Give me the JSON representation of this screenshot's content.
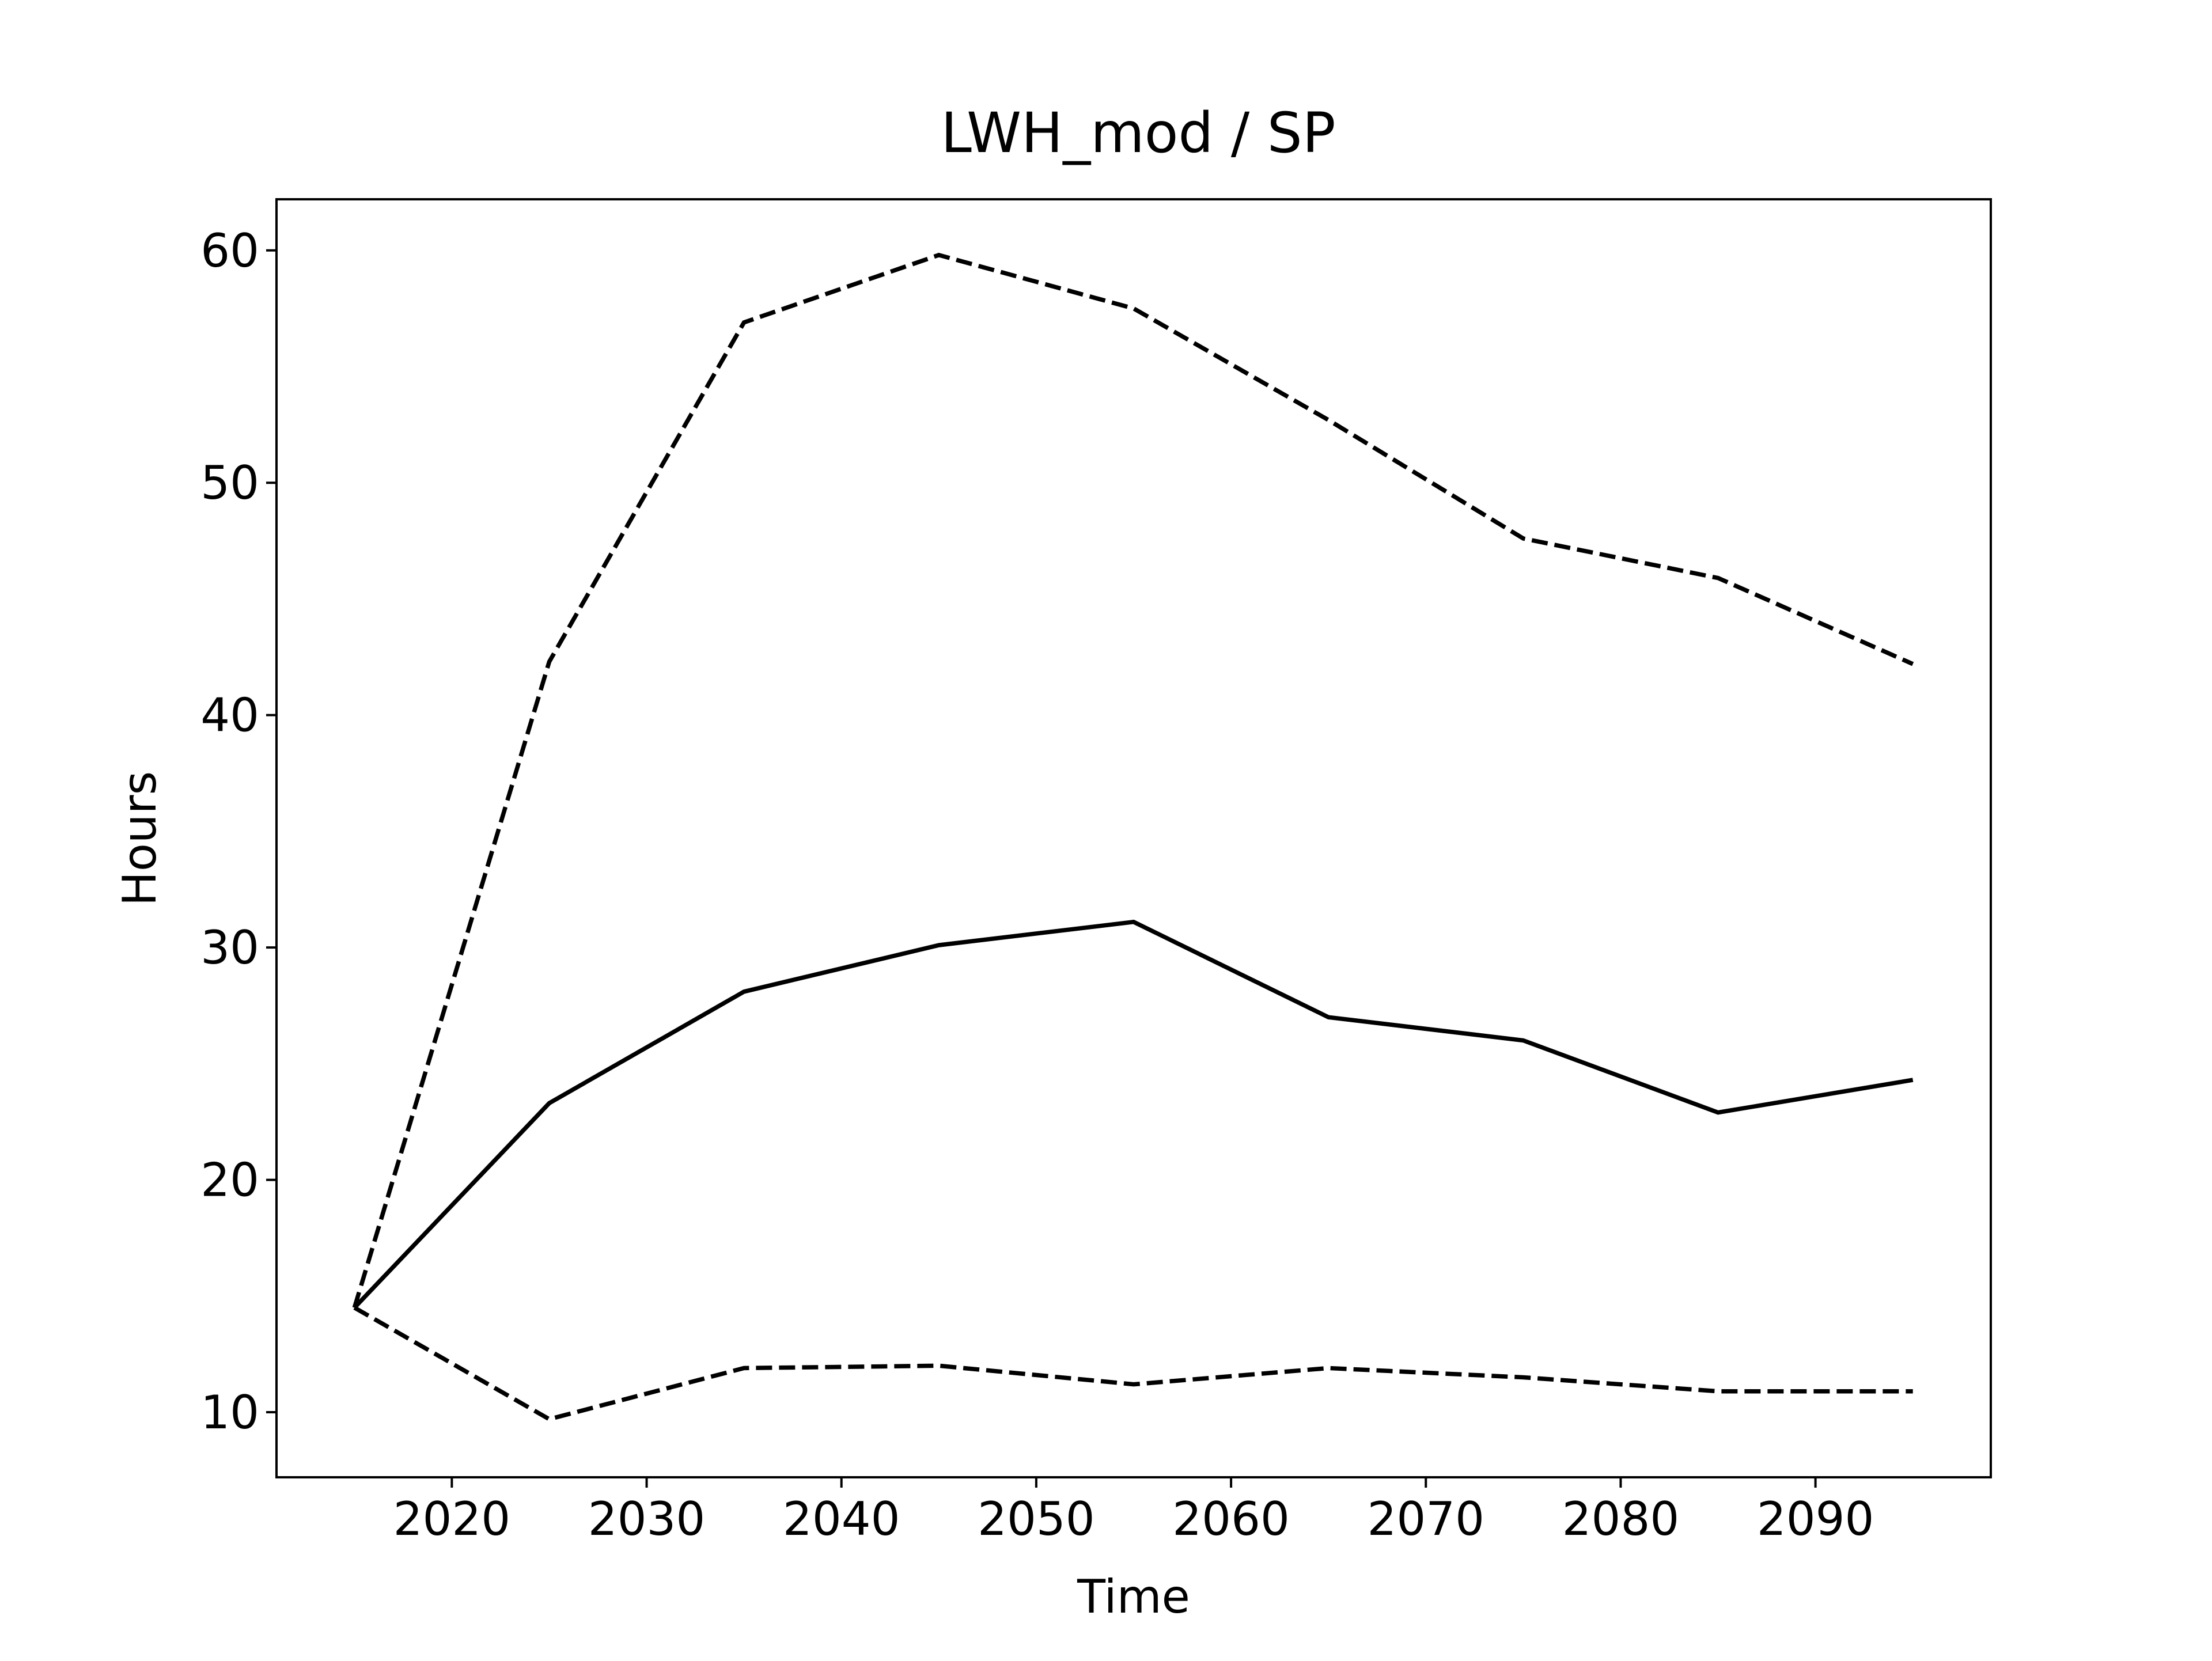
{
  "chart_data": {
    "type": "line",
    "title": "LWH_mod / SP",
    "xlabel": "Time",
    "ylabel": "Hours",
    "xlim": [
      2011,
      2099
    ],
    "ylim": [
      7.2,
      62.2
    ],
    "xticks": [
      2020,
      2030,
      2040,
      2050,
      2060,
      2070,
      2080,
      2090
    ],
    "yticks": [
      10,
      20,
      30,
      40,
      50,
      60
    ],
    "grid": false,
    "legend": "none",
    "colors": {
      "line": "#000000",
      "axes": "#000000",
      "background": "#ffffff"
    },
    "x": [
      2015,
      2025,
      2035,
      2045,
      2055,
      2065,
      2075,
      2085,
      2095
    ],
    "series": [
      {
        "style": "dashed",
        "values": [
          14.5,
          42.3,
          56.9,
          59.8,
          57.5,
          52.7,
          47.6,
          45.9,
          42.2
        ]
      },
      {
        "style": "solid",
        "values": [
          14.5,
          23.3,
          28.1,
          30.1,
          31.1,
          27.0,
          26.0,
          22.9,
          24.3
        ]
      },
      {
        "style": "dashed",
        "values": [
          14.5,
          9.7,
          11.9,
          12.0,
          11.2,
          11.9,
          11.5,
          10.9,
          10.9
        ]
      }
    ]
  }
}
